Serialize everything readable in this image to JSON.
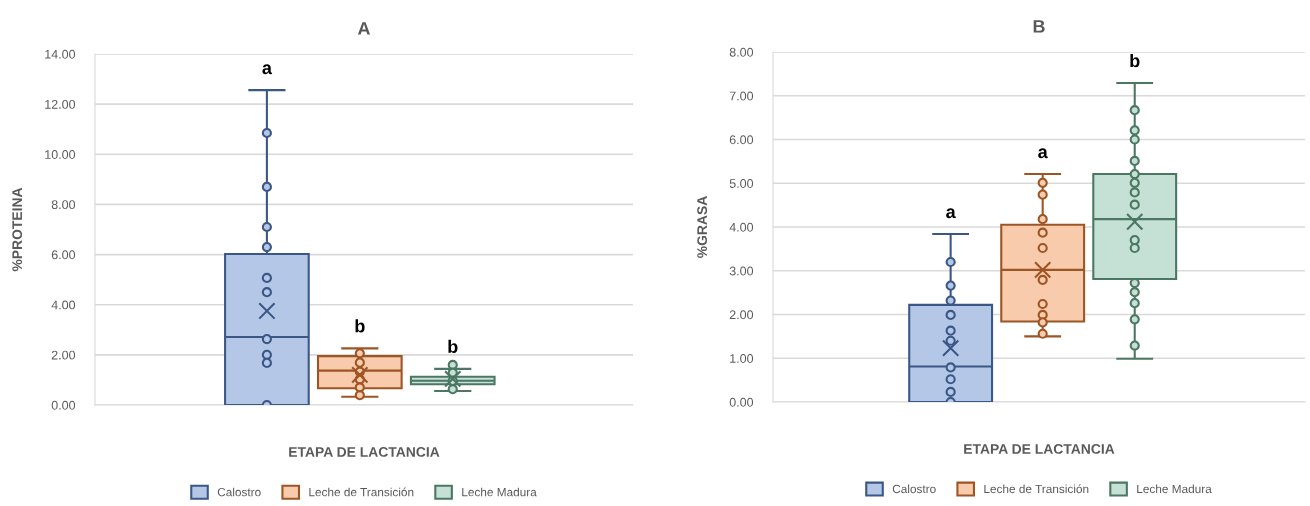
{
  "chart_data": [
    {
      "type": "box",
      "title": "A",
      "xlabel": "ETAPA DE LACTANCIA",
      "ylabel": "%PROTEINA",
      "categories": [
        null
      ],
      "ylim": [
        0,
        14
      ],
      "yticks": [
        {
          "value": 0,
          "label": "0.00"
        },
        {
          "value": 2,
          "label": "2.00"
        },
        {
          "value": 4,
          "label": "4.00"
        },
        {
          "value": 6,
          "label": "6.00"
        },
        {
          "value": 8,
          "label": "8.00"
        },
        {
          "value": 10,
          "label": "10.00"
        },
        {
          "value": 12,
          "label": "12.00"
        },
        {
          "value": 14,
          "label": "14.00"
        }
      ],
      "grid": "y",
      "legend": "bottom",
      "marker": "circle",
      "annotations": [
        "a",
        "b",
        "b"
      ],
      "series": [
        {
          "name": "Calostro",
          "color": "#b4c7e7",
          "boxes": [
            {
              "low": 0,
              "q1": 0,
              "median": 2.71,
              "q3": 6.02,
              "high": 12.56,
              "mean": 3.75,
              "outliers": [
                10.85,
                8.7,
                7.1,
                6.3,
                5.07,
                4.5,
                2.63,
                2.0,
                1.68,
                0
              ]
            }
          ]
        },
        {
          "name": "Leche de Transición",
          "color": "#f8cbad",
          "boxes": [
            {
              "low": 0.33,
              "q1": 0.67,
              "median": 1.37,
              "q3": 1.95,
              "high": 2.26,
              "mean": 1.2,
              "outliers": [
                2.06,
                1.69,
                1.33,
                1.02,
                0.7,
                0.39
              ]
            }
          ]
        },
        {
          "name": "Leche Madura",
          "color": "#c5e0d4",
          "boxes": [
            {
              "low": 0.56,
              "q1": 0.83,
              "median": 0.97,
              "q3": 1.13,
              "high": 1.44,
              "mean": 1.04,
              "outliers": [
                1.6,
                1.29,
                0.96,
                0.63
              ]
            }
          ]
        }
      ]
    },
    {
      "type": "box",
      "title": "B",
      "xlabel": "ETAPA DE LACTANCIA",
      "ylabel": "%GRASA",
      "categories": [
        null
      ],
      "ylim": [
        0,
        8
      ],
      "yticks": [
        {
          "value": 0,
          "label": "0.00"
        },
        {
          "value": 1,
          "label": "1.00"
        },
        {
          "value": 2,
          "label": "2.00"
        },
        {
          "value": 3,
          "label": "3.00"
        },
        {
          "value": 4,
          "label": "4.00"
        },
        {
          "value": 5,
          "label": "5.00"
        },
        {
          "value": 6,
          "label": "6.00"
        },
        {
          "value": 7,
          "label": "7.00"
        },
        {
          "value": 8,
          "label": "8.00"
        }
      ],
      "grid": "y",
      "legend": "bottom",
      "marker": "circle",
      "annotations": [
        "a",
        "a",
        "b"
      ],
      "series": [
        {
          "name": "Calostro",
          "color": "#b4c7e7",
          "boxes": [
            {
              "low": 0,
              "q1": 0,
              "median": 0.81,
              "q3": 2.22,
              "high": 3.84,
              "mean": 1.23,
              "outliers": [
                3.2,
                2.66,
                2.32,
                1.99,
                1.63,
                1.4,
                0.79,
                0.52,
                0.23,
                0
              ]
            }
          ]
        },
        {
          "name": "Leche de Transición",
          "color": "#f8cbad",
          "boxes": [
            {
              "low": 1.5,
              "q1": 1.84,
              "median": 3.02,
              "q3": 4.05,
              "high": 5.21,
              "mean": 3.02,
              "outliers": [
                5.01,
                4.74,
                4.18,
                3.87,
                3.52,
                2.79,
                2.24,
                1.99,
                1.82,
                1.56
              ]
            }
          ]
        },
        {
          "name": "Leche Madura",
          "color": "#c5e0d4",
          "boxes": [
            {
              "low": 0.99,
              "q1": 2.81,
              "median": 4.18,
              "q3": 5.21,
              "high": 7.29,
              "mean": 4.12,
              "outliers": [
                6.67,
                6.21,
                6.0,
                5.51,
                5.21,
                5.01,
                4.79,
                4.51,
                3.7,
                3.52,
                2.72,
                2.51,
                2.26,
                1.89,
                1.29
              ]
            }
          ]
        }
      ]
    }
  ]
}
